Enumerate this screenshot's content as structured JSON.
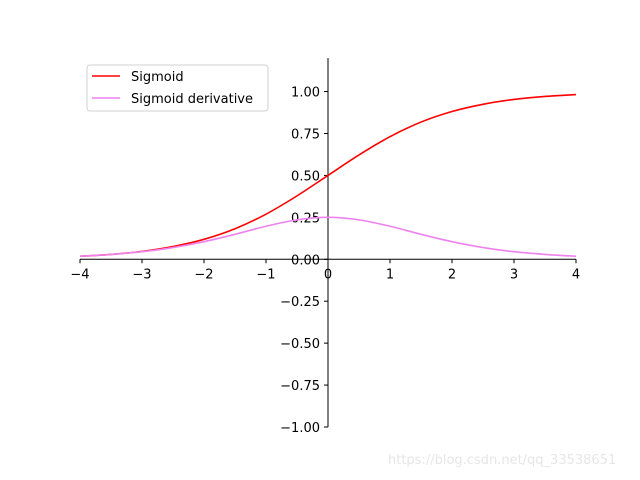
{
  "chart_data": {
    "type": "line",
    "title": "",
    "xlabel": "",
    "ylabel": "",
    "xlim": [
      -4,
      4
    ],
    "ylim": [
      -1.0,
      1.2
    ],
    "spines": "centered",
    "grid": false,
    "legend_position": "top-left",
    "x_ticks": [
      -4,
      -3,
      -2,
      -1,
      0,
      1,
      2,
      3,
      4
    ],
    "x_tick_labels": [
      "−4",
      "−3",
      "−2",
      "−1",
      "0",
      "1",
      "2",
      "3",
      "4"
    ],
    "y_ticks": [
      1.0,
      0.75,
      0.5,
      0.25,
      0.0,
      -0.25,
      -0.5,
      -0.75,
      -1.0
    ],
    "y_tick_labels": [
      "1.00",
      "0.75",
      "0.50",
      "0.25",
      "0.00",
      "−0.25",
      "−0.50",
      "−0.75",
      "−1.00"
    ],
    "x": [
      -4,
      -3.5,
      -3,
      -2.5,
      -2,
      -1.5,
      -1,
      -0.5,
      0,
      0.5,
      1,
      1.5,
      2,
      2.5,
      3,
      3.5,
      4
    ],
    "series": [
      {
        "name": "Sigmoid",
        "color": "#ff0000",
        "values": [
          0.018,
          0.029,
          0.047,
          0.076,
          0.119,
          0.182,
          0.269,
          0.378,
          0.5,
          0.622,
          0.731,
          0.818,
          0.881,
          0.924,
          0.953,
          0.971,
          0.982
        ]
      },
      {
        "name": "Sigmoid derivative",
        "color": "#ee82ee",
        "values": [
          0.018,
          0.029,
          0.045,
          0.07,
          0.105,
          0.149,
          0.197,
          0.235,
          0.25,
          0.235,
          0.197,
          0.149,
          0.105,
          0.07,
          0.045,
          0.029,
          0.018
        ]
      }
    ]
  },
  "watermark": "https://blog.csdn.net/qq_33538651"
}
